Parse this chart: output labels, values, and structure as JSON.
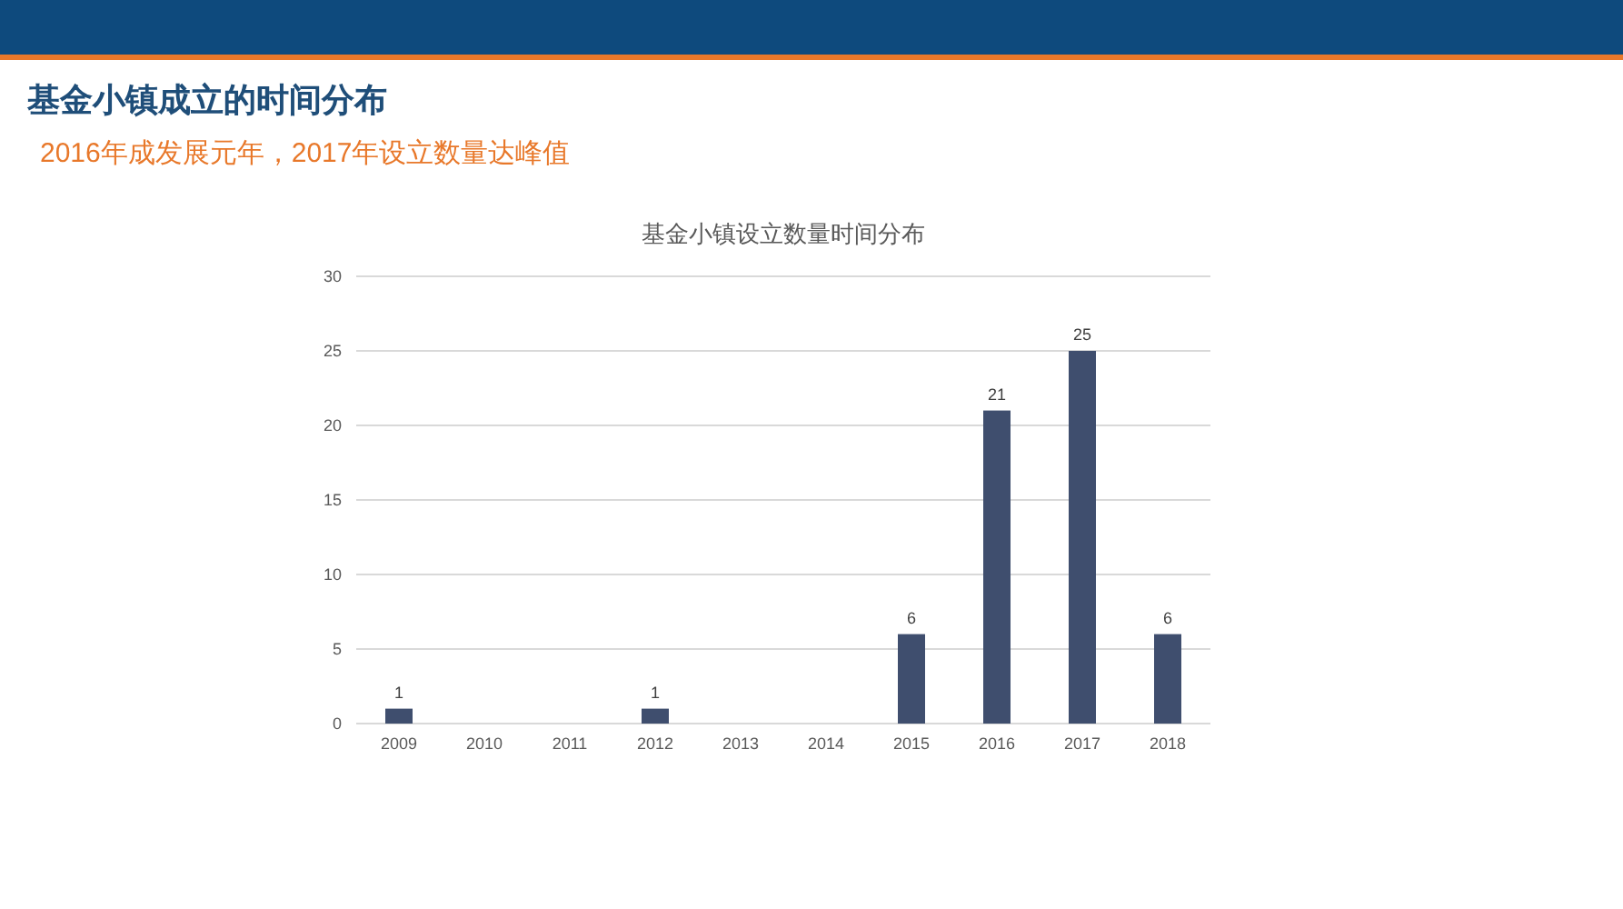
{
  "chart_data": {
    "type": "bar",
    "title": "基金小镇成立的时间分布",
    "subtitle": "2016年成发展元年，2017年设立数量达峰值",
    "annotations": [
      "基金小镇设立数量时间分布"
    ],
    "categories": [
      "2009",
      "2010",
      "2011",
      "2012",
      "2013",
      "2014",
      "2015",
      "2016",
      "2017",
      "2018"
    ],
    "values": [
      1,
      0,
      0,
      1,
      0,
      0,
      6,
      21,
      25,
      6
    ],
    "value_labels": [
      "1",
      null,
      null,
      "1",
      null,
      null,
      "6",
      "21",
      "25",
      "6"
    ],
    "color": "#3f4e6e",
    "ylim": [
      0,
      30
    ],
    "yticks": [
      0,
      5,
      10,
      15,
      20,
      25,
      30
    ],
    "grid": "y"
  }
}
